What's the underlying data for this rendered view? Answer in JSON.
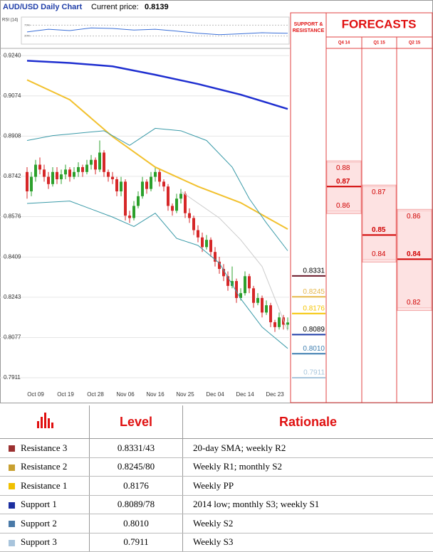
{
  "chart_data": {
    "type": "candlestick",
    "title": "AUD/USD Daily Chart",
    "current_price_label": "Current price:",
    "current_price": 0.8139,
    "ylim": [
      0.787,
      0.927
    ],
    "yticks": [
      {
        "value": 0.924,
        "label": "0.9240"
      },
      0.9074,
      0.8908,
      0.8742,
      0.8576,
      0.8409,
      0.8243,
      0.8077,
      0.7911
    ],
    "grid": true,
    "up_color": "#2ca02c",
    "down_color": "#d62728",
    "categories": [
      null,
      null,
      "Oct 09",
      null,
      null,
      null,
      null,
      null,
      null,
      "Oct 19",
      null,
      null,
      null,
      null,
      null,
      null,
      "Oct 28",
      null,
      null,
      null,
      null,
      null,
      null,
      "Nov 06",
      null,
      null,
      null,
      null,
      null,
      null,
      "Nov 16",
      null,
      null,
      null,
      null,
      null,
      null,
      "Nov 25",
      null,
      null,
      null,
      null,
      null,
      null,
      "Dec 04",
      null,
      null,
      null,
      null,
      null,
      null,
      "Dec 14",
      null,
      null,
      null,
      null,
      null,
      null,
      "Dec 23",
      null,
      null,
      null
    ],
    "candles": [
      [
        0.876,
        0.878,
        0.865,
        0.868
      ],
      [
        0.868,
        0.876,
        0.866,
        0.874
      ],
      [
        0.874,
        0.881,
        0.872,
        0.879
      ],
      [
        0.879,
        0.882,
        0.875,
        0.877
      ],
      [
        0.877,
        0.879,
        0.872,
        0.874
      ],
      [
        0.874,
        0.876,
        0.869,
        0.871
      ],
      [
        0.871,
        0.878,
        0.87,
        0.876
      ],
      [
        0.876,
        0.878,
        0.871,
        0.873
      ],
      [
        0.873,
        0.877,
        0.871,
        0.875
      ],
      [
        0.875,
        0.879,
        0.873,
        0.877
      ],
      [
        0.877,
        0.878,
        0.872,
        0.874
      ],
      [
        0.874,
        0.878,
        0.873,
        0.876
      ],
      [
        0.876,
        0.88,
        0.874,
        0.878
      ],
      [
        0.878,
        0.879,
        0.874,
        0.876
      ],
      [
        0.876,
        0.881,
        0.875,
        0.879
      ],
      [
        0.879,
        0.883,
        0.877,
        0.881
      ],
      [
        0.881,
        0.882,
        0.875,
        0.877
      ],
      [
        0.877,
        0.889,
        0.876,
        0.884
      ],
      [
        0.884,
        0.885,
        0.874,
        0.876
      ],
      [
        0.876,
        0.877,
        0.872,
        0.874
      ],
      [
        0.874,
        0.876,
        0.871,
        0.873
      ],
      [
        0.873,
        0.874,
        0.866,
        0.868
      ],
      [
        0.868,
        0.874,
        0.866,
        0.872
      ],
      [
        0.872,
        0.873,
        0.856,
        0.858
      ],
      [
        0.858,
        0.86,
        0.855,
        0.857
      ],
      [
        0.857,
        0.864,
        0.856,
        0.862
      ],
      [
        0.862,
        0.868,
        0.861,
        0.866
      ],
      [
        0.866,
        0.874,
        0.865,
        0.872
      ],
      [
        0.872,
        0.873,
        0.867,
        0.869
      ],
      [
        0.869,
        0.876,
        0.868,
        0.874
      ],
      [
        0.874,
        0.878,
        0.872,
        0.876
      ],
      [
        0.876,
        0.877,
        0.87,
        0.872
      ],
      [
        0.872,
        0.873,
        0.868,
        0.87
      ],
      [
        0.87,
        0.871,
        0.86,
        0.862
      ],
      [
        0.862,
        0.863,
        0.858,
        0.86
      ],
      [
        0.86,
        0.867,
        0.859,
        0.865
      ],
      [
        0.865,
        0.869,
        0.863,
        0.867
      ],
      [
        0.867,
        0.868,
        0.857,
        0.859
      ],
      [
        0.859,
        0.861,
        0.855,
        0.857
      ],
      [
        0.857,
        0.858,
        0.85,
        0.852
      ],
      [
        0.852,
        0.854,
        0.847,
        0.849
      ],
      [
        0.849,
        0.851,
        0.843,
        0.845
      ],
      [
        0.845,
        0.85,
        0.844,
        0.848
      ],
      [
        0.848,
        0.849,
        0.841,
        0.843
      ],
      [
        0.843,
        0.845,
        0.837,
        0.839
      ],
      [
        0.839,
        0.841,
        0.834,
        0.836
      ],
      [
        0.836,
        0.838,
        0.831,
        0.833
      ],
      [
        0.833,
        0.835,
        0.827,
        0.829
      ],
      [
        0.829,
        0.837,
        0.828,
        0.831
      ],
      [
        0.831,
        0.832,
        0.822,
        0.824
      ],
      [
        0.824,
        0.828,
        0.823,
        0.826
      ],
      [
        0.826,
        0.835,
        0.825,
        0.833
      ],
      [
        0.833,
        0.834,
        0.826,
        0.828
      ],
      [
        0.828,
        0.829,
        0.82,
        0.822
      ],
      [
        0.822,
        0.826,
        0.821,
        0.824
      ],
      [
        0.824,
        0.825,
        0.816,
        0.818
      ],
      [
        0.818,
        0.823,
        0.817,
        0.821
      ],
      [
        0.821,
        0.822,
        0.812,
        0.814
      ],
      [
        0.814,
        0.815,
        0.81,
        0.812
      ],
      [
        0.812,
        0.818,
        0.811,
        0.816
      ],
      [
        0.816,
        0.817,
        0.811,
        0.813
      ],
      [
        0.813,
        0.816,
        0.811,
        0.8139
      ]
    ],
    "lines": [
      {
        "color": "#1f2fd0",
        "width": 2.5,
        "x": [
          0,
          10,
          20,
          30,
          40,
          50,
          61
        ],
        "values": [
          0.9219,
          0.921,
          0.9196,
          0.9161,
          0.9123,
          0.9079,
          0.902
        ]
      },
      {
        "color": "#f2c12e",
        "width": 2,
        "x": [
          0,
          10,
          20,
          30,
          40,
          50,
          61
        ],
        "values": [
          0.914,
          0.9058,
          0.8906,
          0.878,
          0.87,
          0.8633,
          0.8524
        ]
      },
      {
        "color": "#3a9aa8",
        "width": 1,
        "x": [
          0,
          6,
          12,
          18,
          24,
          30,
          36,
          42,
          48,
          52,
          56,
          61
        ],
        "values": [
          0.889,
          0.891,
          0.892,
          0.893,
          0.887,
          0.894,
          0.893,
          0.889,
          0.878,
          0.865,
          0.855,
          0.8435
        ]
      },
      {
        "color": "#3a9aa8",
        "width": 1,
        "x": [
          0,
          10,
          20,
          25,
          30,
          35,
          40,
          45,
          50,
          55,
          61
        ],
        "values": [
          0.863,
          0.864,
          0.8574,
          0.8535,
          0.859,
          0.8486,
          0.8457,
          0.8384,
          0.8237,
          0.812,
          0.8032
        ]
      },
      {
        "color": "#cccccc",
        "width": 1,
        "x": [
          36,
          45,
          50,
          55,
          61
        ],
        "values": [
          0.868,
          0.857,
          0.848,
          0.837,
          0.8105
        ]
      }
    ],
    "rsi": {
      "label": "RSI (14)",
      "color": "#3a6fd8",
      "ylim": [
        0,
        100
      ],
      "yticks": [
        {
          "value": 70,
          "label": "70%"
        },
        {
          "value": 30,
          "label": "30%"
        }
      ],
      "x": [
        0,
        5,
        10,
        15,
        20,
        25,
        30,
        35,
        40,
        45,
        50,
        55,
        61
      ],
      "values": [
        45,
        55,
        50,
        60,
        58,
        52,
        55,
        48,
        40,
        35,
        38,
        42,
        40
      ]
    }
  },
  "support_resistance": {
    "title": "SUPPORT & RESISTANCE",
    "values": [
      0.8331,
      0.8245,
      0.8176,
      0.8089,
      0.801,
      0.7911
    ],
    "value_labels": [
      "0.8331",
      "0.8245",
      "0.8176",
      "0.8089",
      "0.8010",
      "0.7911"
    ],
    "colors": [
      "#6b1a2a",
      "#e6b84a",
      "#f5c400",
      "#1f3ea8",
      "#3f7fb0",
      "#a9c6dc"
    ]
  },
  "forecasts": {
    "title": "FORECASTS",
    "periods": [
      "Q4 14",
      "Q1 15",
      "Q2 15"
    ],
    "values": [
      [
        0.88,
        0.87,
        0.86
      ],
      [
        0.87,
        0.85,
        0.84
      ],
      [
        0.86,
        0.84,
        0.82
      ]
    ]
  },
  "table": {
    "header": [
      "Level",
      "Rationale"
    ],
    "rows": [
      {
        "name": "Resistance 3",
        "level": "0.8331/43",
        "rationale": "20-day SMA; weekly R2",
        "color": "#9b3030"
      },
      {
        "name": "Resistance 2",
        "level": "0.8245/80",
        "rationale": "Weekly R1; monthly S2",
        "color": "#c8a030"
      },
      {
        "name": "Resistance 1",
        "level": "0.8176",
        "rationale": "Weekly PP",
        "color": "#f0c000"
      },
      {
        "name": "Support 1",
        "level": "0.8089/78",
        "rationale": "2014 low; monthly S3; weekly S1",
        "color": "#1c2fa0"
      },
      {
        "name": "Support 2",
        "level": "0.8010",
        "rationale": "Weekly S2",
        "color": "#4a7aa8"
      },
      {
        "name": "Support 3",
        "level": "0.7911",
        "rationale": "Weekly S3",
        "color": "#a8c4dc"
      }
    ]
  }
}
